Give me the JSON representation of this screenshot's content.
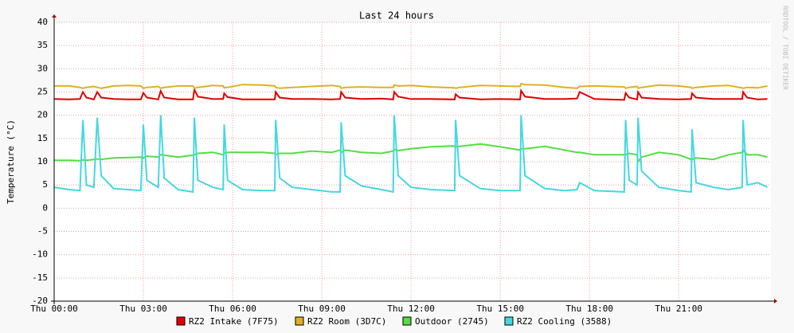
{
  "chart_data": {
    "type": "line",
    "title": "Last 24 hours",
    "y_label": "Temperature (°C)",
    "watermark": "RRDTOOL / TOBI OETIKER",
    "x": [
      "Thu 00:00",
      "Thu 00:30",
      "Thu 00:52",
      "Thu 00:58",
      "Thu 01:05",
      "Thu 01:20",
      "Thu 01:27",
      "Thu 01:35",
      "Thu 02:00",
      "Thu 02:30",
      "Thu 02:55",
      "Thu 03:00",
      "Thu 03:07",
      "Thu 03:30",
      "Thu 03:35",
      "Thu 03:42",
      "Thu 04:10",
      "Thu 04:40",
      "Thu 04:43",
      "Thu 04:50",
      "Thu 05:20",
      "Thu 05:41",
      "Thu 05:43",
      "Thu 05:50",
      "Thu 06:20",
      "Thu 07:00",
      "Thu 07:25",
      "Thu 07:27",
      "Thu 07:35",
      "Thu 08:00",
      "Thu 08:40",
      "Thu 09:20",
      "Thu 09:37",
      "Thu 09:39",
      "Thu 09:47",
      "Thu 10:20",
      "Thu 11:00",
      "Thu 11:24",
      "Thu 11:26",
      "Thu 11:34",
      "Thu 12:00",
      "Thu 12:40",
      "Thu 13:28",
      "Thu 13:30",
      "Thu 13:38",
      "Thu 14:20",
      "Thu 15:00",
      "Thu 15:40",
      "Thu 15:42",
      "Thu 15:50",
      "Thu 16:30",
      "Thu 17:10",
      "Thu 17:35",
      "Thu 17:40",
      "Thu 18:10",
      "Thu 19:10",
      "Thu 19:13",
      "Thu 19:20",
      "Thu 19:36",
      "Thu 19:38",
      "Thu 19:45",
      "Thu 20:20",
      "Thu 21:00",
      "Thu 21:25",
      "Thu 21:27",
      "Thu 21:35",
      "Thu 22:10",
      "Thu 22:40",
      "Thu 23:08",
      "Thu 23:10",
      "Thu 23:18",
      "Thu 23:40",
      "Thu 23:59"
    ],
    "xlim": [
      "Thu 00:00",
      "Fri 00:06"
    ],
    "xticks": [
      "Thu 00:00",
      "Thu 03:00",
      "Thu 06:00",
      "Thu 09:00",
      "Thu 12:00",
      "Thu 15:00",
      "Thu 18:00",
      "Thu 21:00"
    ],
    "ylim": [
      -20,
      40
    ],
    "yticks": [
      -20,
      -15,
      -10,
      -5,
      0,
      5,
      10,
      15,
      20,
      25,
      30,
      35,
      40
    ],
    "grid": true,
    "series": [
      {
        "name": "RZ2 Intake (7F75)",
        "color": "#e00000",
        "values": [
          23.5,
          23.4,
          23.5,
          25.0,
          23.8,
          23.4,
          25.0,
          23.8,
          23.5,
          23.4,
          23.4,
          24.8,
          23.8,
          23.4,
          25.2,
          23.8,
          23.4,
          23.4,
          25.5,
          24.0,
          23.5,
          23.5,
          24.7,
          23.9,
          23.4,
          23.4,
          23.4,
          25.0,
          23.8,
          23.5,
          23.5,
          23.4,
          23.5,
          25.0,
          23.8,
          23.5,
          23.6,
          23.4,
          25.0,
          24.0,
          23.5,
          23.5,
          23.4,
          24.5,
          23.8,
          23.4,
          23.5,
          23.4,
          25.3,
          24.0,
          23.5,
          23.5,
          23.6,
          25.0,
          23.5,
          23.3,
          24.8,
          23.8,
          23.4,
          25.0,
          23.8,
          23.5,
          23.4,
          23.5,
          24.7,
          23.8,
          23.5,
          23.5,
          23.5,
          25.0,
          23.8,
          23.4,
          23.5
        ]
      },
      {
        "name": "RZ2 Room (3D7C)",
        "color": "#e0b020",
        "values": [
          26.3,
          26.3,
          26.0,
          25.8,
          26.0,
          26.2,
          26.0,
          25.8,
          26.3,
          26.4,
          26.3,
          25.8,
          26.0,
          26.2,
          25.8,
          26.0,
          26.3,
          26.3,
          25.8,
          26.0,
          26.4,
          26.3,
          25.9,
          26.0,
          26.6,
          26.5,
          26.3,
          26.0,
          25.8,
          26.0,
          26.2,
          26.4,
          26.2,
          25.8,
          26.0,
          26.1,
          26.0,
          26.0,
          26.5,
          26.3,
          26.4,
          26.1,
          25.9,
          25.8,
          26.0,
          26.4,
          26.3,
          26.2,
          26.8,
          26.6,
          26.5,
          26.0,
          25.8,
          26.2,
          26.3,
          26.1,
          25.8,
          26.0,
          26.2,
          25.8,
          26.0,
          26.5,
          26.3,
          26.0,
          25.8,
          26.0,
          26.3,
          26.4,
          25.9,
          25.8,
          26.0,
          25.9,
          26.3
        ]
      },
      {
        "name": "Outdoor (2745)",
        "color": "#55dd44",
        "values": [
          10.3,
          10.3,
          10.2,
          10.4,
          10.3,
          10.5,
          10.6,
          10.5,
          10.8,
          10.9,
          11.0,
          10.8,
          11.2,
          11.0,
          11.5,
          11.4,
          11.0,
          11.4,
          11.5,
          11.8,
          12.0,
          11.5,
          11.8,
          12.0,
          12.0,
          12.0,
          11.8,
          11.5,
          11.8,
          11.8,
          12.3,
          12.0,
          12.5,
          12.0,
          12.5,
          12.0,
          11.8,
          12.3,
          12.6,
          12.4,
          12.8,
          13.2,
          13.4,
          13.2,
          13.3,
          13.8,
          13.2,
          12.5,
          12.8,
          12.8,
          13.3,
          12.5,
          12.0,
          12.0,
          11.5,
          11.5,
          11.5,
          11.8,
          11.5,
          10.0,
          11.0,
          12.0,
          11.5,
          10.5,
          10.5,
          10.8,
          10.5,
          11.5,
          12.0,
          12.5,
          11.5,
          11.5,
          11.0
        ]
      },
      {
        "name": "RZ2 Cooling (3588)",
        "color": "#44d8e0",
        "values": [
          4.5,
          4.0,
          3.8,
          19.0,
          5.0,
          4.5,
          19.5,
          7.0,
          4.2,
          4.0,
          3.8,
          18.0,
          6.0,
          4.5,
          20.0,
          6.5,
          4.0,
          3.5,
          19.5,
          6.0,
          4.5,
          4.0,
          18.0,
          6.0,
          4.0,
          3.8,
          3.8,
          19.0,
          6.5,
          4.5,
          4.0,
          3.5,
          3.5,
          18.5,
          7.0,
          4.8,
          4.0,
          3.5,
          20.0,
          7.0,
          4.5,
          4.0,
          3.8,
          19.0,
          7.0,
          4.2,
          3.8,
          3.8,
          20.0,
          7.0,
          4.2,
          3.8,
          4.0,
          5.5,
          3.8,
          3.5,
          19.0,
          6.0,
          5.0,
          19.5,
          8.0,
          4.5,
          3.8,
          3.5,
          17.0,
          5.5,
          4.5,
          4.0,
          4.5,
          19.0,
          5.0,
          5.5,
          4.5
        ]
      }
    ]
  }
}
